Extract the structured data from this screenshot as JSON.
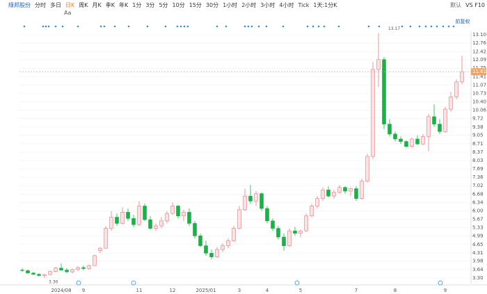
{
  "toolbar": {
    "stock": "綠邦股份",
    "tabs": [
      "分时",
      "多日",
      "日K",
      "周K",
      "月K",
      "季K",
      "年K",
      "1分",
      "3分",
      "5分",
      "10分",
      "15分",
      "30分",
      "1小时",
      "2小时",
      "3小时",
      "4小时",
      "Tick",
      "1天:1分K"
    ],
    "active": 2,
    "right": [
      "默认",
      "VS F10"
    ],
    "aa": "Aa"
  },
  "chart_data": {
    "type": "candlestick",
    "adjust_label": "前复权",
    "up_color": "#e8787e",
    "down_color": "#1fae4a",
    "grid": true,
    "open": [
      3.62,
      3.6,
      3.5,
      3.45,
      3.4,
      3.44,
      3.56,
      3.7,
      3.62,
      3.55,
      3.64,
      3.72,
      3.68,
      3.8,
      4.4,
      4.5,
      5.3,
      5.75,
      5.5,
      5.95,
      5.7,
      5.45,
      6.2,
      5.65,
      5.3,
      5.4,
      5.6,
      5.9,
      6.2,
      5.8,
      5.95,
      5.5,
      5.0,
      4.6,
      4.3,
      4.15,
      4.45,
      4.6,
      4.8,
      5.3,
      6.05,
      6.6,
      6.4,
      6.7,
      6.1,
      5.6,
      5.3,
      4.95,
      4.6,
      5.2,
      5.1,
      5.2,
      5.8,
      6.2,
      6.5,
      6.85,
      6.6,
      6.75,
      6.95,
      6.8,
      6.9,
      6.5,
      7.2,
      8.2,
      11.7,
      12.1,
      9.5,
      9.1,
      8.9,
      8.8,
      8.6,
      8.9,
      8.7,
      9.0,
      9.8,
      9.5,
      9.2,
      10.1,
      10.6,
      11.2
    ],
    "high": [
      3.7,
      3.64,
      3.55,
      3.5,
      3.46,
      3.6,
      3.75,
      3.9,
      3.7,
      3.68,
      3.78,
      3.8,
      3.85,
      4.25,
      4.55,
      5.4,
      6.0,
      5.9,
      6.15,
      6.1,
      5.85,
      6.4,
      6.3,
      5.8,
      5.5,
      5.75,
      6.0,
      6.35,
      6.25,
      6.05,
      6.1,
      5.6,
      5.1,
      4.8,
      4.45,
      4.55,
      4.7,
      4.9,
      5.4,
      6.2,
      6.9,
      7.05,
      6.8,
      6.75,
      6.2,
      5.7,
      5.4,
      5.1,
      5.3,
      5.35,
      5.25,
      5.9,
      6.3,
      6.6,
      6.95,
      7.0,
      6.85,
      7.05,
      7.0,
      6.95,
      7.0,
      7.3,
      8.3,
      12.0,
      13.17,
      12.2,
      9.7,
      9.2,
      9.0,
      8.85,
      8.95,
      9.05,
      9.1,
      9.9,
      10.3,
      9.7,
      10.2,
      10.8,
      11.3,
      12.25
    ],
    "low": [
      3.55,
      3.48,
      3.42,
      3.36,
      3.3,
      3.4,
      3.52,
      3.64,
      3.5,
      3.48,
      3.58,
      3.62,
      3.64,
      3.78,
      4.3,
      4.48,
      5.2,
      5.4,
      5.45,
      5.6,
      5.35,
      5.4,
      5.6,
      5.25,
      5.2,
      5.3,
      5.5,
      5.85,
      5.7,
      5.6,
      5.4,
      4.9,
      4.55,
      4.2,
      4.05,
      4.1,
      4.35,
      4.5,
      4.75,
      5.25,
      6.0,
      6.3,
      6.2,
      6.0,
      5.5,
      5.2,
      4.85,
      4.4,
      4.55,
      5.0,
      4.95,
      5.15,
      5.75,
      6.1,
      6.4,
      6.55,
      6.5,
      6.7,
      6.7,
      6.6,
      6.4,
      6.45,
      7.15,
      8.1,
      11.0,
      9.3,
      9.0,
      8.8,
      8.7,
      8.55,
      8.55,
      8.65,
      8.65,
      8.4,
      9.4,
      9.1,
      9.15,
      10.0,
      10.5,
      11.1
    ],
    "close": [
      3.6,
      3.5,
      3.45,
      3.4,
      3.44,
      3.56,
      3.7,
      3.62,
      3.55,
      3.64,
      3.72,
      3.68,
      3.8,
      4.2,
      4.5,
      5.3,
      5.75,
      5.5,
      5.95,
      5.7,
      5.45,
      6.2,
      5.65,
      5.3,
      5.4,
      5.6,
      5.9,
      6.2,
      5.8,
      5.95,
      5.5,
      5.0,
      4.6,
      4.3,
      4.15,
      4.45,
      4.6,
      4.8,
      5.3,
      6.05,
      6.6,
      6.4,
      6.7,
      6.1,
      5.6,
      5.3,
      4.95,
      4.6,
      5.2,
      5.1,
      5.2,
      5.8,
      6.2,
      6.5,
      6.85,
      6.6,
      6.75,
      6.95,
      6.8,
      6.9,
      6.5,
      7.2,
      8.2,
      11.7,
      12.1,
      9.5,
      9.1,
      8.9,
      8.8,
      8.6,
      8.9,
      8.7,
      9.0,
      9.8,
      9.5,
      9.2,
      10.1,
      10.6,
      11.2,
      11.61
    ],
    "ylim": [
      3.3,
      13.1
    ],
    "yticks": [
      {
        "value": 3.3,
        "label": "3.30"
      },
      3.64,
      3.98,
      4.31,
      4.65,
      4.99,
      5.33,
      5.67,
      {
        "value": 6,
        "label": "6.00"
      },
      6.34,
      6.68,
      7.02,
      7.36,
      7.69,
      8.03,
      8.37,
      8.71,
      9.05,
      9.38,
      9.72,
      10.06,
      {
        "value": 10.4,
        "label": "10.40"
      },
      10.73,
      11.07,
      11.41,
      11.75,
      12.09,
      12.42,
      12.76,
      {
        "value": 13.1,
        "label": "13.10"
      }
    ],
    "xticks": [
      {
        "value": 7,
        "label": "2024/08"
      },
      {
        "value": 11,
        "label": "9"
      },
      {
        "value": 21,
        "label": "11"
      },
      {
        "value": 27,
        "label": "12"
      },
      {
        "value": 33,
        "label": "2025/01"
      },
      {
        "value": 39,
        "label": "3"
      },
      {
        "value": 44,
        "label": "4"
      },
      {
        "value": 50,
        "label": "5"
      },
      {
        "value": 60,
        "label": "7"
      },
      {
        "value": 67,
        "label": "8"
      },
      {
        "value": 76,
        "label": "9"
      }
    ],
    "last_price": 11.61,
    "last_color": "#f5a25d",
    "annotations": [
      {
        "index": 64,
        "value": 13.17,
        "label": "13.17"
      },
      {
        "index": 4,
        "value": 3.3,
        "label": "3.30"
      }
    ]
  }
}
